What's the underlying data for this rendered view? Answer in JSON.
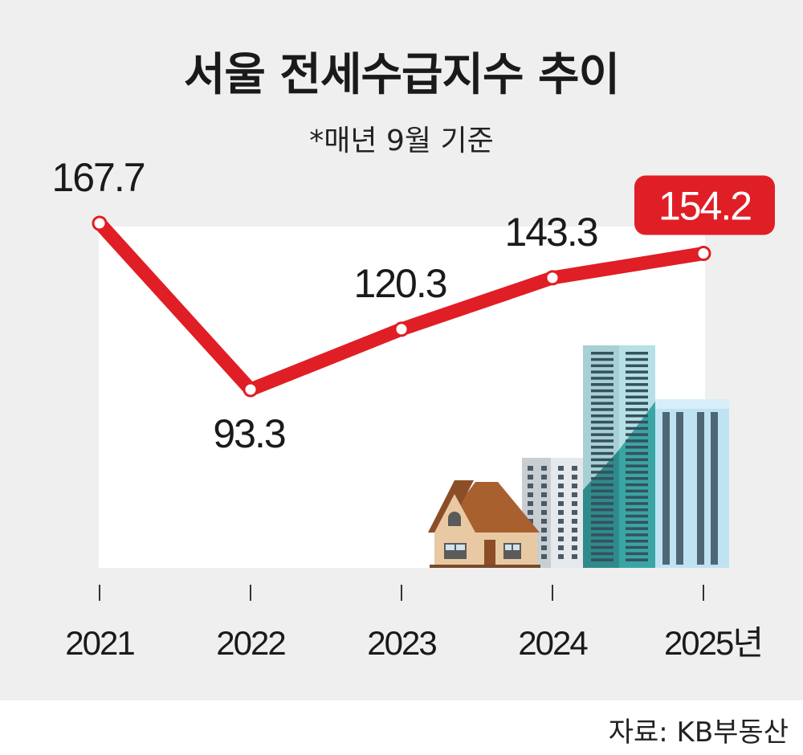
{
  "title": "서울 전세수급지수 추이",
  "subtitle": "*매년 9월 기준",
  "source": "자료: KB부동산",
  "chart_data": {
    "type": "line",
    "title": "서울 전세수급지수 추이",
    "subtitle": "*매년 9월 기준",
    "categories": [
      "2021",
      "2022",
      "2023",
      "2024",
      "2025년"
    ],
    "values": [
      167.7,
      93.3,
      120.3,
      143.3,
      154.2
    ],
    "value_labels": [
      "167.7",
      "93.3",
      "120.3",
      "143.3",
      "154.2"
    ],
    "highlight_index": 4,
    "grid": false,
    "legend": "none"
  },
  "colors": {
    "line": "#e01e25",
    "highlight_box": "#e01e25",
    "background": "#efefef",
    "plot_background": "#ffffff"
  },
  "illustration": "house-and-buildings-illustration"
}
